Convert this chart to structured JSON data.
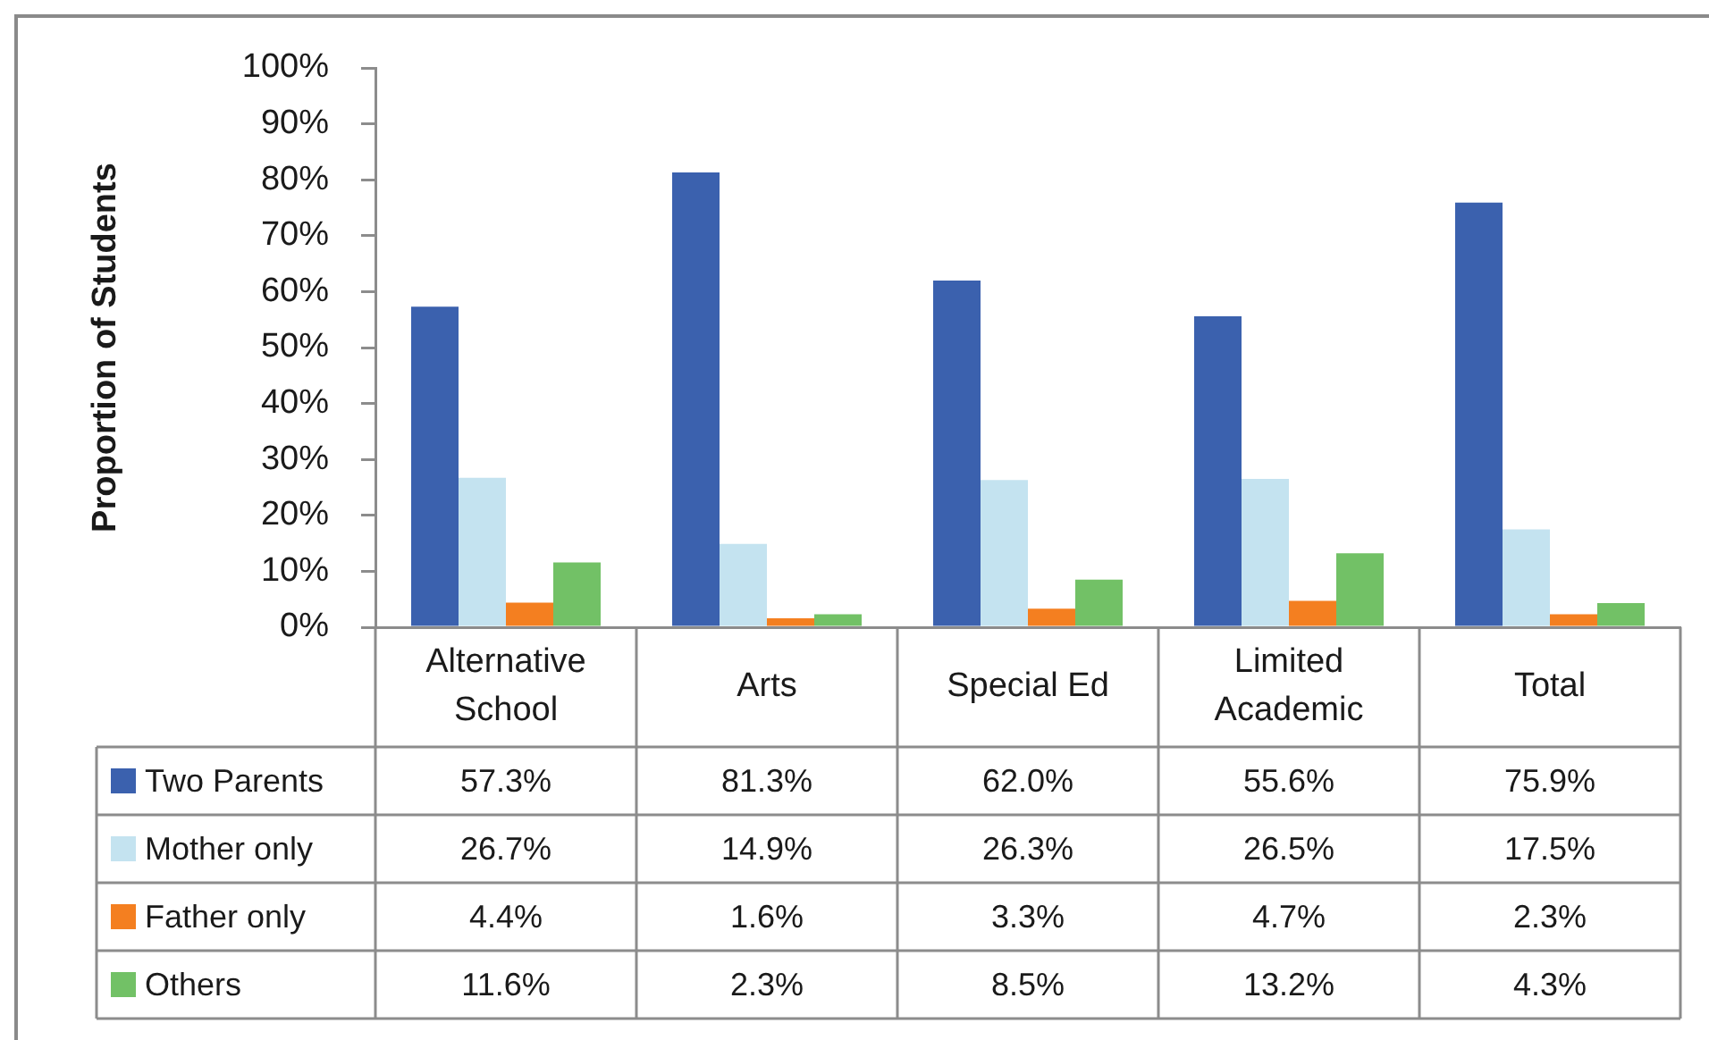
{
  "chart_data": {
    "type": "bar",
    "ylabel": "Proportion of Students",
    "categories": [
      "Alternative School",
      "Arts",
      "Special Ed",
      "Limited Academic",
      "Total"
    ],
    "series": [
      {
        "name": "Two Parents",
        "color": "#3b61ae",
        "values": [
          57.3,
          81.3,
          62.0,
          55.6,
          75.9
        ],
        "value_labels": [
          "57.3%",
          "81.3%",
          "62.0%",
          "55.6%",
          "75.9%"
        ]
      },
      {
        "name": "Mother only",
        "color": "#c4e3f0",
        "values": [
          26.7,
          14.9,
          26.3,
          26.5,
          17.5
        ],
        "value_labels": [
          "26.7%",
          "14.9%",
          "26.3%",
          "26.5%",
          "17.5%"
        ]
      },
      {
        "name": "Father only",
        "color": "#f47f20",
        "values": [
          4.4,
          1.6,
          3.3,
          4.7,
          2.3
        ],
        "value_labels": [
          "4.4%",
          "1.6%",
          "3.3%",
          "4.7%",
          "2.3%"
        ]
      },
      {
        "name": "Others",
        "color": "#72c166",
        "values": [
          11.6,
          2.3,
          8.5,
          13.2,
          4.3
        ],
        "value_labels": [
          "11.6%",
          "2.3%",
          "8.5%",
          "13.2%",
          "4.3%"
        ]
      }
    ],
    "ylim": [
      0,
      100
    ],
    "yticks": [
      {
        "value": 0,
        "label": "0%"
      },
      {
        "value": 10,
        "label": "10%"
      },
      {
        "value": 20,
        "label": "20%"
      },
      {
        "value": 30,
        "label": "30%"
      },
      {
        "value": 40,
        "label": "40%"
      },
      {
        "value": 50,
        "label": "50%"
      },
      {
        "value": 60,
        "label": "60%"
      },
      {
        "value": 70,
        "label": "70%"
      },
      {
        "value": 80,
        "label": "80%"
      },
      {
        "value": 90,
        "label": "90%"
      },
      {
        "value": 100,
        "label": "100%"
      }
    ],
    "grid": false,
    "legend": "bottom"
  }
}
